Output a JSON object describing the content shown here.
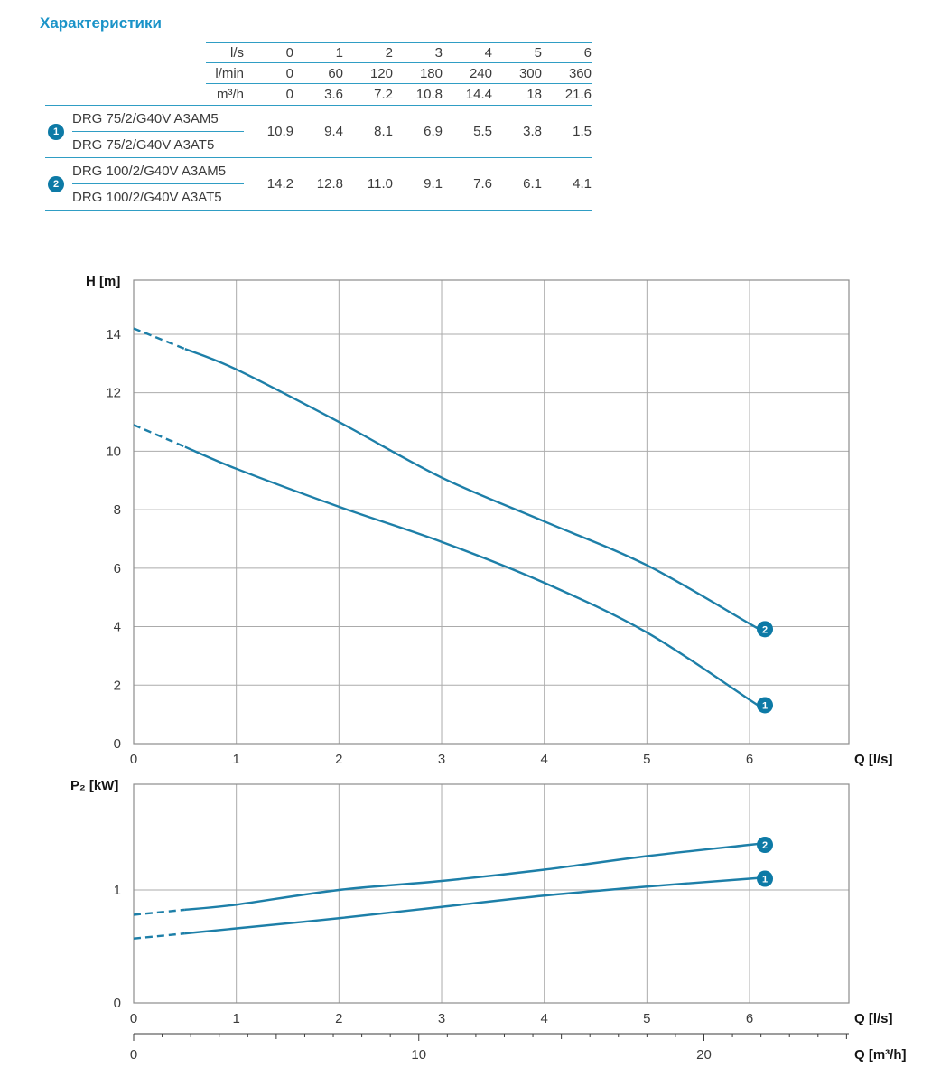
{
  "title": "Характеристики",
  "table": {
    "header_rows": [
      {
        "label": "l/s",
        "values": [
          "0",
          "1",
          "2",
          "3",
          "4",
          "5",
          "6"
        ]
      },
      {
        "label": "l/min",
        "values": [
          "0",
          "60",
          "120",
          "180",
          "240",
          "300",
          "360"
        ]
      },
      {
        "label": "m³/h",
        "values": [
          "0",
          "3.6",
          "7.2",
          "10.8",
          "14.4",
          "18",
          "21.6"
        ]
      }
    ],
    "groups": [
      {
        "badge": "1",
        "models": [
          "DRG 75/2/G40V A3AM5",
          "DRG 75/2/G40V A3AT5"
        ],
        "values": [
          "10.9",
          "9.4",
          "8.1",
          "6.9",
          "5.5",
          "3.8",
          "1.5"
        ]
      },
      {
        "badge": "2",
        "models": [
          "DRG 100/2/G40V A3AM5",
          "DRG 100/2/G40V A3AT5"
        ],
        "values": [
          "14.2",
          "12.8",
          "11.0",
          "9.1",
          "7.6",
          "6.1",
          "4.1"
        ]
      }
    ]
  },
  "colors": {
    "accent": "#1a93c8",
    "rule": "#2f9dc4",
    "curve": "#1d7fa8",
    "badge": "#0d7aa6",
    "grid": "#ababab",
    "frame": "#8d8d8d",
    "text": "#3b3b3b",
    "axis_label": "#141414"
  },
  "chart_data": [
    {
      "type": "line",
      "title": "Head curves",
      "ylabel": "H [m]",
      "xlabel": "Q [l/s]",
      "xlim": [
        0,
        7
      ],
      "ylim": [
        0,
        16
      ],
      "xticks": [
        0,
        1,
        2,
        3,
        4,
        5,
        6
      ],
      "yticks": [
        0,
        2,
        4,
        6,
        8,
        10,
        12,
        14
      ],
      "grid": true,
      "dashed_until_x": 0.5,
      "series": [
        {
          "name": "1",
          "label": "DRG 75/2/G40V",
          "x": [
            0,
            1,
            2,
            3,
            4,
            5,
            6
          ],
          "y": [
            10.9,
            9.4,
            8.1,
            6.9,
            5.5,
            3.8,
            1.5
          ]
        },
        {
          "name": "2",
          "label": "DRG 100/2/G40V",
          "x": [
            0,
            1,
            2,
            3,
            4,
            5,
            6
          ],
          "y": [
            14.2,
            12.8,
            11.0,
            9.1,
            7.6,
            6.1,
            4.1
          ]
        }
      ]
    },
    {
      "type": "line",
      "title": "Power curves",
      "ylabel": "P₂ [kW]",
      "xlabel": "Q [l/s]",
      "xlim": [
        0,
        7
      ],
      "ylim": [
        0,
        2
      ],
      "xticks": [
        0,
        1,
        2,
        3,
        4,
        5,
        6
      ],
      "yticks": [
        0,
        1
      ],
      "grid": true,
      "dashed_until_x": 0.5,
      "series": [
        {
          "name": "1",
          "label": "DRG 75/2/G40V",
          "x": [
            0,
            1,
            2,
            3,
            4,
            5,
            6
          ],
          "y": [
            0.57,
            0.66,
            0.75,
            0.85,
            0.95,
            1.03,
            1.1
          ]
        },
        {
          "name": "2",
          "label": "DRG 100/2/G40V",
          "x": [
            0,
            1,
            2,
            3,
            4,
            5,
            6
          ],
          "y": [
            0.78,
            0.87,
            1.0,
            1.08,
            1.18,
            1.3,
            1.4
          ]
        }
      ],
      "secondary_xaxis": {
        "label": "Q [m³/h]",
        "ticks": [
          0,
          10,
          20
        ],
        "m3h_per_ls": 3.6,
        "max": 25
      }
    }
  ]
}
